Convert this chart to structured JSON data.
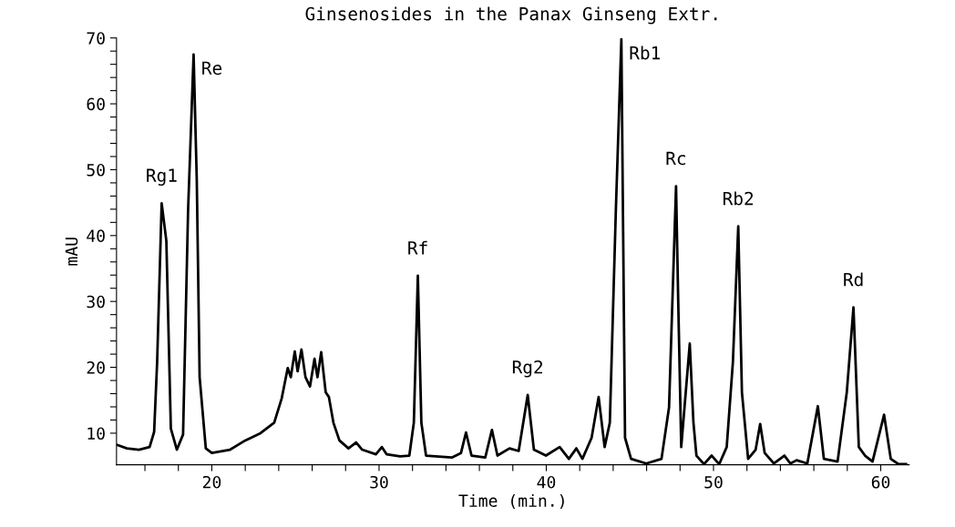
{
  "chart_data": {
    "type": "line",
    "title": "Ginsenosides in the Panax Ginseng Extr.",
    "xlabel": "Time (min.)",
    "ylabel": "mAU",
    "xlim": [
      14.3,
      61.7
    ],
    "ylim": [
      5.2,
      70
    ],
    "xticks": [
      {
        "value": 16,
        "label": null
      },
      {
        "value": 18,
        "label": null
      },
      20,
      {
        "value": 22,
        "label": null
      },
      {
        "value": 24,
        "label": null
      },
      {
        "value": 26,
        "label": null
      },
      {
        "value": 28,
        "label": null
      },
      30,
      {
        "value": 32,
        "label": null
      },
      {
        "value": 34,
        "label": null
      },
      {
        "value": 36,
        "label": null
      },
      {
        "value": 38,
        "label": null
      },
      40,
      {
        "value": 42,
        "label": null
      },
      {
        "value": 44,
        "label": null
      },
      {
        "value": 46,
        "label": null
      },
      {
        "value": 48,
        "label": null
      },
      50,
      {
        "value": 52,
        "label": null
      },
      {
        "value": 54,
        "label": null
      },
      {
        "value": 56,
        "label": null
      },
      {
        "value": 58,
        "label": null
      },
      60
    ],
    "yticks": [
      10,
      {
        "value": 12,
        "label": null
      },
      {
        "value": 14,
        "label": null
      },
      {
        "value": 16,
        "label": null
      },
      {
        "value": 18,
        "label": null
      },
      20,
      {
        "value": 22,
        "label": null
      },
      {
        "value": 24,
        "label": null
      },
      {
        "value": 26,
        "label": null
      },
      {
        "value": 28,
        "label": null
      },
      30,
      {
        "value": 32,
        "label": null
      },
      {
        "value": 34,
        "label": null
      },
      {
        "value": 36,
        "label": null
      },
      {
        "value": 38,
        "label": null
      },
      40,
      {
        "value": 42,
        "label": null
      },
      {
        "value": 44,
        "label": null
      },
      {
        "value": 46,
        "label": null
      },
      {
        "value": 48,
        "label": null
      },
      50,
      {
        "value": 52,
        "label": null
      },
      {
        "value": 54,
        "label": null
      },
      {
        "value": 56,
        "label": null
      },
      {
        "value": 58,
        "label": null
      },
      60,
      {
        "value": 62,
        "label": null
      },
      {
        "value": 64,
        "label": null
      },
      {
        "value": 66,
        "label": null
      },
      {
        "value": 68,
        "label": null
      },
      70
    ],
    "grid": false,
    "marker": "none",
    "line_style": "solid",
    "series": [
      {
        "color": "#000000",
        "x": [
          14.37,
          14.92,
          15.64,
          16.28,
          16.55,
          16.73,
          17.0,
          17.28,
          17.55,
          17.91,
          18.28,
          18.58,
          18.91,
          19.1,
          19.27,
          19.64,
          20.0,
          21.09,
          22.0,
          22.91,
          23.73,
          24.18,
          24.54,
          24.72,
          24.96,
          25.13,
          25.36,
          25.6,
          25.87,
          26.14,
          26.32,
          26.54,
          26.81,
          27.0,
          27.27,
          27.63,
          28.17,
          28.63,
          28.99,
          29.81,
          30.17,
          30.45,
          31.26,
          31.81,
          32.08,
          32.32,
          32.53,
          32.81,
          34.35,
          34.9,
          35.2,
          35.53,
          36.35,
          36.75,
          37.08,
          37.8,
          38.35,
          38.89,
          39.26,
          39.98,
          40.8,
          41.35,
          41.8,
          42.16,
          42.71,
          43.13,
          43.49,
          43.8,
          44.16,
          44.49,
          44.71,
          45.07,
          45.98,
          46.89,
          47.34,
          47.76,
          47.89,
          48.07,
          48.34,
          48.58,
          48.8,
          48.98,
          49.43,
          49.89,
          50.34,
          50.79,
          51.16,
          51.48,
          51.7,
          52.07,
          52.52,
          52.79,
          53.06,
          53.61,
          54.24,
          54.6,
          54.97,
          55.61,
          56.24,
          56.6,
          57.42,
          57.97,
          58.37,
          58.69,
          59.06,
          59.51,
          60.2,
          60.6,
          61.06,
          61.51
        ],
        "values": [
          8.2,
          7.7,
          7.5,
          7.9,
          10.2,
          20.8,
          44.9,
          39.2,
          10.7,
          7.5,
          9.8,
          43.8,
          67.5,
          48.4,
          18.5,
          7.7,
          7.0,
          7.5,
          8.9,
          10.0,
          11.6,
          15.3,
          19.9,
          18.5,
          22.4,
          19.4,
          22.7,
          18.5,
          17.1,
          21.3,
          18.5,
          22.3,
          16.2,
          15.5,
          11.6,
          8.9,
          7.7,
          8.6,
          7.5,
          6.8,
          7.9,
          6.8,
          6.5,
          6.6,
          11.6,
          33.9,
          11.6,
          6.6,
          6.3,
          7.0,
          10.1,
          6.6,
          6.3,
          10.5,
          6.6,
          7.7,
          7.3,
          15.8,
          7.5,
          6.6,
          7.9,
          6.1,
          7.7,
          6.1,
          9.3,
          15.5,
          7.9,
          11.6,
          43.8,
          69.8,
          9.3,
          6.1,
          5.4,
          6.1,
          13.9,
          47.5,
          30.0,
          7.9,
          16.2,
          23.6,
          11.6,
          6.6,
          5.3,
          6.6,
          5.3,
          7.9,
          20.8,
          41.4,
          16.2,
          6.1,
          7.5,
          11.4,
          7.0,
          5.4,
          6.6,
          5.4,
          5.9,
          5.4,
          14.1,
          6.1,
          5.7,
          16.2,
          29.1,
          7.9,
          6.6,
          5.7,
          12.8,
          6.1,
          5.3,
          5.3
        ]
      }
    ],
    "annotations": [
      {
        "text": "Rg1",
        "x": 17.0,
        "y": 44.9
      },
      {
        "text": "Re",
        "x": 18.91,
        "y": 67.5
      },
      {
        "text": "Rf",
        "x": 32.32,
        "y": 33.9
      },
      {
        "text": "Rg2",
        "x": 38.89,
        "y": 15.8
      },
      {
        "text": "Rb1",
        "x": 44.49,
        "y": 69.8
      },
      {
        "text": "Rc",
        "x": 47.76,
        "y": 47.5
      },
      {
        "text": "Rb2",
        "x": 51.48,
        "y": 41.4
      },
      {
        "text": "Rd",
        "x": 58.37,
        "y": 29.1
      }
    ]
  }
}
